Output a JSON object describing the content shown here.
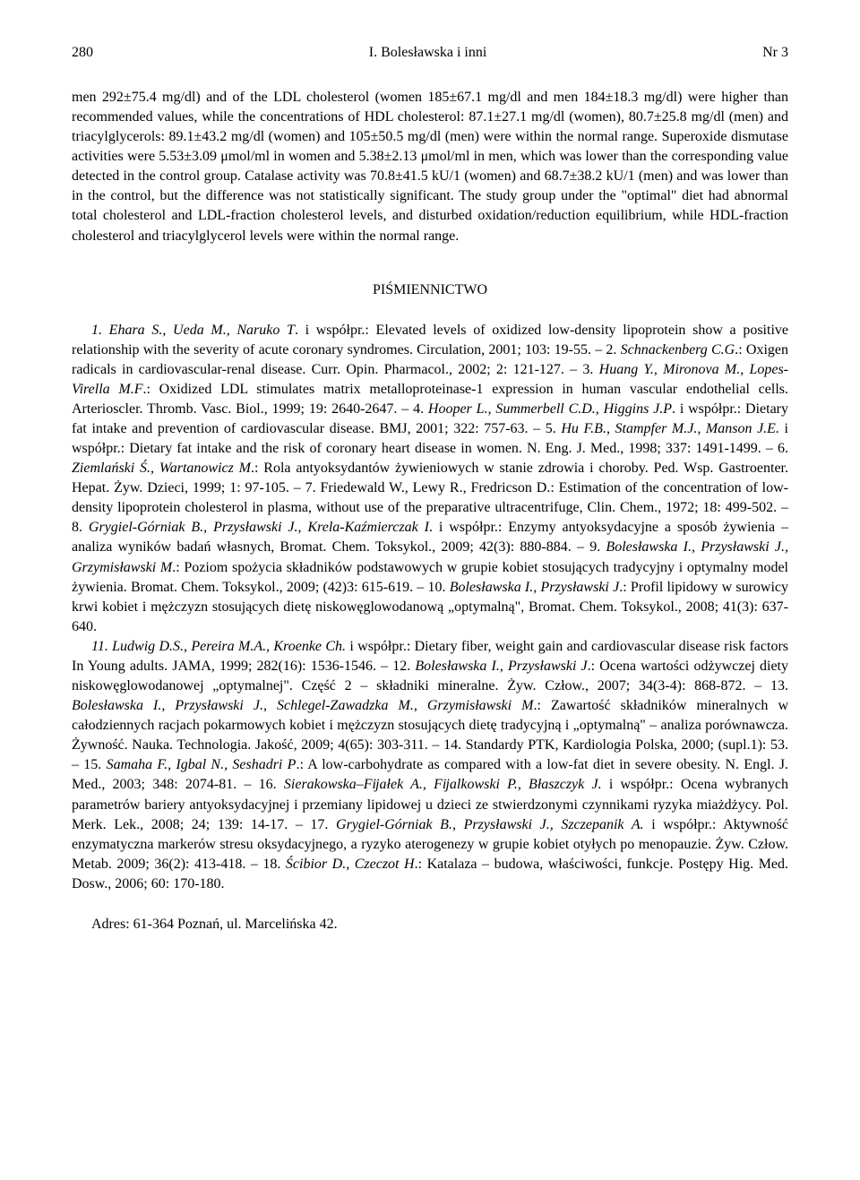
{
  "header": {
    "page_number": "280",
    "authors": "I. Bolesławska i inni",
    "issue": "Nr 3"
  },
  "abstract": {
    "text": "men 292±75.4 mg/dl) and of the LDL cholesterol (women 185±67.1 mg/dl and men 184±18.3 mg/dl) were higher than recommended values, while the concentrations of HDL cholesterol: 87.1±27.1 mg/dl (women), 80.7±25.8 mg/dl (men) and triacylglycerols: 89.1±43.2 mg/dl (women) and 105±50.5 mg/dl (men) were within the normal range. Superoxide dismutase activities were 5.53±3.09 μmol/ml in women and 5.38±2.13 μmol/ml in men, which was lower than the corresponding value detected in the control group. Catalase activity was 70.8±41.5 kU/1 (women) and 68.7±38.2 kU/1 (men) and was lower than in the control, but the difference was not statistically significant. The study group under the \"optimal\" diet had abnormal total cholesterol and LDL-fraction cholesterol levels, and disturbed oxidation/reduction equilibrium, while HDL-fraction cholesterol and triacylglycerol levels were within the normal range."
  },
  "references_title": "PIŚMIENNICTWO",
  "references": {
    "r1_author": "1. Ehara S., Ueda M., Naruko T",
    "r1_text": ". i współpr.: Elevated levels of oxidized low-density lipoprotein show a positive relationship with the severity of acute coronary syndromes. Circulation, 2001; 103: 19-55. – 2. ",
    "r2_author": "Schnackenberg C.G",
    "r2_text": ".: Oxigen radicals in cardiovascular-renal disease. Curr. Opin. Pharmacol., 2002; 2: 121-127. – 3. ",
    "r3_author": "Huang Y., Mironova M., Lopes-Virella M.F",
    "r3_text": ".: Oxidized LDL stimulates matrix metalloproteinase-1 expression in human vascular endothelial cells. Arterioscler. Thromb. Vasc. Biol., 1999; 19: 2640-2647. – 4. ",
    "r4_author": "Hooper L., Summerbell C.D., Higgins J.P",
    "r4_text": ". i współpr.: Dietary fat intake and prevention of cardiovascular disease. BMJ, 2001; 322: 757-63. – 5. ",
    "r5_author": "Hu F.B., Stampfer M.J., Manson J.E.",
    "r5_text": " i współpr.: Dietary fat intake and the risk of coronary heart disease in women. N. Eng. J. Med., 1998; 337: 1491-1499. – 6. ",
    "r6_author": "Ziemlański Ś., Wartanowicz M",
    "r6_text": ".: Rola antyoksydantów żywieniowych w stanie zdrowia i choroby. Ped. Wsp. Gastroenter. Hepat. Żyw. Dzieci, 1999; 1: 97-105. – 7. Friedewald W., Lewy R., Fredricson D.: Estimation of the concentration of low-density lipoprotein cholesterol in plasma, without use of the preparative ultracentrifuge, Clin. Chem., 1972; 18: 499-502. – 8. ",
    "r8_author": "Grygiel-Górniak B., Przysławski J., Krela-Kaźmierczak I",
    "r8_text": ". i współpr.: Enzymy antyoksydacyjne a sposób żywienia – analiza wyników badań własnych, Bromat. Chem. Toksykol., 2009; 42(3): 880-884. – 9. ",
    "r9_author": "Bolesławska I., Przysławski J., Grzymisławski M",
    "r9_text": ".: Poziom spożycia składników podstawowych w grupie kobiet stosujących tradycyjny i optymalny model żywienia. Bromat. Chem. Toksykol., 2009; (42)3: 615-619. – 10. ",
    "r10_author": "Bolesławska I., Przysławski J",
    "r10_text": ".: Profil lipidowy w surowicy krwi kobiet i mężczyzn stosujących dietę niskowęglowodanową „optymalną\", Bromat. Chem. Toksykol., 2008; 41(3): 637-640.",
    "r11_author": "11. Ludwig D.S., Pereira M.A., Kroenke Ch.",
    "r11_text": " i współpr.: Dietary fiber, weight gain and cardiovascular disease risk factors In Young adults. JAMA, 1999; 282(16): 1536-1546. – 12. ",
    "r12_author": "Bolesławska I., Przysławski J",
    "r12_text": ".: Ocena wartości odżywczej diety niskowęglowodanowej „optymalnej\". Część 2 – składniki mineralne. Żyw. Człow., 2007; 34(3-4): 868-872. – 13. ",
    "r13_author": "Bolesławska I., Przysławski J., Schlegel-Zawadzka M., Grzymisławski M",
    "r13_text": ".: Zawartość składników mineralnych w całodziennych racjach pokarmowych kobiet i mężczyzn stosujących dietę tradycyjną i „optymalną\" – analiza porównawcza. Żywność. Nauka. Technologia. Jakość, 2009; 4(65): 303-311. – 14. Standardy PTK, Kardiologia Polska, 2000; (supl.1): 53. – 15. ",
    "r15_author": "Samaha F., Igbal N., Seshadri P",
    "r15_text": ".: A low-carbohydrate as compared with a low-fat diet in severe obesity. N. Engl. J. Med., 2003; 348: 2074-81. – 16. ",
    "r16_author": "Sierakowska–Fĳałek A., Fĳalkowski P., Błaszczyk J.",
    "r16_text": " i współpr.: Ocena wybranych parametrów bariery antyoksydacyjnej i przemiany lipidowej u dzieci ze stwierdzonymi czynnikami ryzyka miażdżycy. Pol. Merk. Lek., 2008; 24; 139: 14-17. – 17. ",
    "r17_author": "Grygiel-Górniak B., Przysławski J., Szczepanik A.",
    "r17_text": " i współpr.: Aktywność enzymatyczna markerów stresu oksydacyjnego, a ryzyko aterogenezy w grupie kobiet otyłych po menopauzie. Żyw. Człow. Metab. 2009; 36(2): 413-418. – 18. ",
    "r18_author": "Ścibior D., Czeczot H",
    "r18_text": ".: Katalaza – budowa, właściwości, funkcje. Postępy Hig. Med. Dosw., 2006; 60: 170-180."
  },
  "address": "Adres: 61-364 Poznań, ul. Marcelińska 42.",
  "colors": {
    "text": "#000000",
    "background": "#ffffff"
  },
  "typography": {
    "font_family": "Times New Roman",
    "body_fontsize": 16,
    "line_height": 1.38
  }
}
